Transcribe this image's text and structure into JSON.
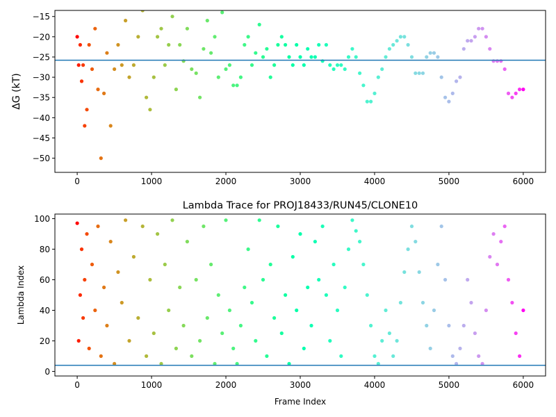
{
  "chart_data": [
    {
      "type": "scatter",
      "title": "",
      "xlabel": "",
      "ylabel": "ΔG (kT)",
      "xlim": [
        -300,
        6300
      ],
      "ylim": [
        -53.5,
        -13.5
      ],
      "xticks": [
        0,
        1000,
        2000,
        3000,
        4000,
        5000,
        6000
      ],
      "xtick_labels": [
        "0",
        "1000",
        "2000",
        "3000",
        "4000",
        "5000",
        "6000"
      ],
      "yticks": [
        -50,
        -45,
        -40,
        -35,
        -30,
        -25,
        -20,
        -15
      ],
      "ytick_labels": [
        "−50",
        "−45",
        "−40",
        "−35",
        "−30",
        "−25",
        "−20",
        "−15"
      ],
      "hline": -25.8,
      "colormap": "rainbow (red → violet along frame index)",
      "grid": false,
      "series": [
        {
          "x": [
            0,
            20,
            40,
            60,
            80,
            100,
            130,
            160,
            200,
            240,
            280,
            320,
            360,
            400,
            450,
            500,
            550,
            600,
            650,
            700,
            760,
            820,
            880,
            930,
            980,
            1030,
            1080,
            1130,
            1180,
            1230,
            1280,
            1330,
            1380,
            1430,
            1480,
            1540,
            1600,
            1650,
            1700,
            1750,
            1800,
            1850,
            1900,
            1950,
            2000,
            2050,
            2100,
            2150,
            2200,
            2250,
            2300,
            2350,
            2400,
            2450,
            2500,
            2550,
            2600,
            2650,
            2700,
            2750,
            2800,
            2850,
            2900,
            2950,
            3000,
            3050,
            3100,
            3150,
            3200,
            3250,
            3300,
            3350,
            3400,
            3450,
            3500,
            3550,
            3600,
            3650,
            3700,
            3750,
            3800,
            3850,
            3900,
            3950,
            4000,
            4050,
            4100,
            4150,
            4200,
            4250,
            4300,
            4350,
            4400,
            4450,
            4500,
            4550,
            4600,
            4650,
            4700,
            4750,
            4800,
            4850,
            4900,
            4950,
            5000,
            5050,
            5100,
            5150,
            5200,
            5250,
            5300,
            5350,
            5400,
            5450,
            5500,
            5550,
            5600,
            5650,
            5700,
            5750,
            5800,
            5850,
            5900,
            5950,
            6000
          ],
          "y": [
            -20,
            -27,
            -22,
            -31,
            -27,
            -42,
            -38,
            -22,
            -28,
            -18,
            -33,
            -50,
            -34,
            -24,
            -42,
            -28,
            -22,
            -27,
            -16,
            -30,
            -27,
            -20,
            -13.5,
            -35,
            -38,
            -30,
            -20,
            -18,
            -27,
            -22,
            -15,
            -33,
            -22,
            -26,
            -18,
            -28,
            -29,
            -35,
            -23,
            -16,
            -24,
            -20,
            -30,
            -14,
            -28,
            -27,
            -32,
            -32,
            -30,
            -22,
            -20,
            -27,
            -24,
            -17,
            -25,
            -23,
            -30,
            -27,
            -22,
            -20,
            -22,
            -25,
            -27,
            -22,
            -25,
            -27,
            -23,
            -25,
            -25,
            -22,
            -26,
            -22,
            -27,
            -28,
            -27,
            -27,
            -28,
            -25,
            -23,
            -25,
            -29,
            -32,
            -36,
            -36,
            -34,
            -30,
            -28,
            -25,
            -23,
            -22,
            -21,
            -20,
            -20,
            -22,
            -25,
            -29,
            -29,
            -29,
            -25,
            -24,
            -24,
            -25,
            -30,
            -35,
            -36,
            -34,
            -31,
            -30,
            -23,
            -21,
            -21,
            -20,
            -18,
            -18,
            -20,
            -23,
            -26,
            -26,
            -26,
            -28,
            -34,
            -35,
            -34,
            -33,
            -33
          ]
        }
      ]
    },
    {
      "type": "scatter",
      "title": "Lambda Trace for PROJ18433/RUN45/CLONE10",
      "xlabel": "Frame Index",
      "ylabel": "Lambda Index",
      "xlim": [
        -300,
        6300
      ],
      "ylim": [
        -3,
        103
      ],
      "xticks": [
        0,
        1000,
        2000,
        3000,
        4000,
        5000,
        6000
      ],
      "xtick_labels": [
        "0",
        "1000",
        "2000",
        "3000",
        "4000",
        "5000",
        "6000"
      ],
      "yticks": [
        0,
        20,
        40,
        60,
        80,
        100
      ],
      "ytick_labels": [
        "0",
        "20",
        "40",
        "60",
        "80",
        "100"
      ],
      "hline": 4,
      "colormap": "rainbow (red → violet along frame index)",
      "grid": false,
      "series": [
        {
          "x": [
            0,
            20,
            40,
            60,
            80,
            100,
            130,
            160,
            200,
            240,
            280,
            320,
            360,
            400,
            450,
            500,
            550,
            600,
            650,
            700,
            760,
            820,
            880,
            930,
            980,
            1030,
            1080,
            1130,
            1180,
            1230,
            1280,
            1330,
            1380,
            1430,
            1480,
            1540,
            1600,
            1650,
            1700,
            1750,
            1800,
            1850,
            1900,
            1950,
            2000,
            2050,
            2100,
            2150,
            2200,
            2250,
            2300,
            2350,
            2400,
            2450,
            2500,
            2550,
            2600,
            2650,
            2700,
            2750,
            2800,
            2850,
            2900,
            2950,
            3000,
            3050,
            3100,
            3150,
            3200,
            3250,
            3300,
            3350,
            3400,
            3450,
            3500,
            3550,
            3600,
            3650,
            3700,
            3750,
            3800,
            3850,
            3900,
            3950,
            4000,
            4050,
            4100,
            4150,
            4200,
            4250,
            4300,
            4350,
            4400,
            4450,
            4500,
            4550,
            4600,
            4650,
            4700,
            4750,
            4800,
            4850,
            4900,
            4950,
            5000,
            5050,
            5100,
            5150,
            5200,
            5250,
            5300,
            5350,
            5400,
            5450,
            5500,
            5550,
            5600,
            5650,
            5700,
            5750,
            5800,
            5850,
            5900,
            5950,
            6000
          ],
          "y": [
            97,
            20,
            50,
            80,
            35,
            60,
            90,
            15,
            70,
            40,
            95,
            10,
            55,
            30,
            85,
            5,
            65,
            45,
            99,
            20,
            75,
            35,
            95,
            10,
            60,
            25,
            90,
            5,
            70,
            40,
            99,
            15,
            55,
            30,
            85,
            10,
            60,
            20,
            95,
            35,
            70,
            5,
            50,
            25,
            99,
            40,
            15,
            5,
            30,
            55,
            80,
            45,
            20,
            99,
            60,
            10,
            70,
            35,
            95,
            25,
            50,
            5,
            75,
            40,
            90,
            15,
            55,
            30,
            85,
            60,
            95,
            50,
            20,
            70,
            40,
            10,
            55,
            80,
            99,
            92,
            85,
            70,
            50,
            30,
            10,
            5,
            20,
            40,
            25,
            10,
            20,
            45,
            65,
            80,
            95,
            85,
            65,
            45,
            30,
            15,
            40,
            70,
            95,
            60,
            30,
            10,
            5,
            15,
            30,
            60,
            45,
            25,
            10,
            5,
            40,
            75,
            90,
            70,
            85,
            95,
            60,
            45,
            25,
            10,
            40
          ]
        }
      ]
    }
  ]
}
